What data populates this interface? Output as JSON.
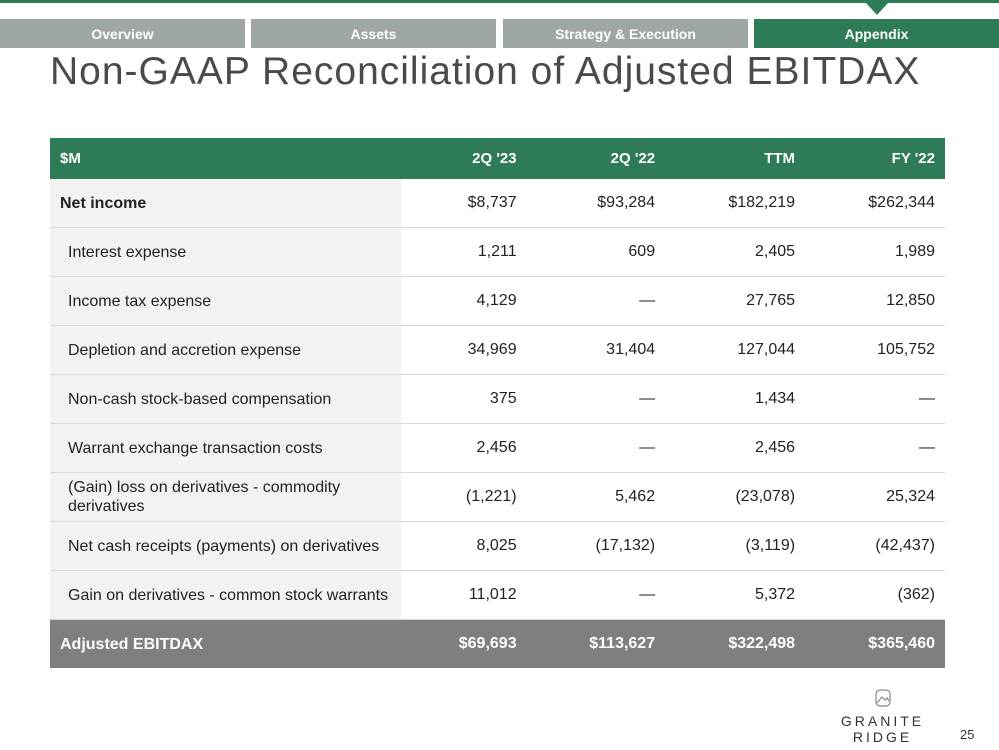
{
  "tabs": [
    "Overview",
    "Assets",
    "Strategy & Execution",
    "Appendix"
  ],
  "title": "Non-GAAP Reconciliation of Adjusted EBITDAX",
  "table": {
    "headers": [
      "$M",
      "2Q '23",
      "2Q '22",
      "TTM",
      "FY '22"
    ],
    "rows": [
      [
        "Net income",
        "$8,737",
        "$93,284",
        "$182,219",
        "$262,344"
      ],
      [
        "Interest expense",
        "1,211",
        "609",
        "2,405",
        "1,989"
      ],
      [
        "Income tax expense",
        "4,129",
        "—",
        "27,765",
        "12,850"
      ],
      [
        "Depletion and accretion expense",
        "34,969",
        "31,404",
        "127,044",
        "105,752"
      ],
      [
        "Non-cash stock-based compensation",
        "375",
        "—",
        "1,434",
        "—"
      ],
      [
        "Warrant exchange transaction costs",
        "2,456",
        "—",
        "2,456",
        "—"
      ],
      [
        "(Gain) loss on derivatives - commodity derivatives",
        "(1,221)",
        "5,462",
        "(23,078)",
        "25,324"
      ],
      [
        "Net cash receipts (payments) on derivatives",
        "8,025",
        "(17,132)",
        "(3,119)",
        "(42,437)"
      ],
      [
        "Gain on derivatives - common stock warrants",
        "11,012",
        "—",
        "5,372",
        "(362)"
      ]
    ],
    "total": [
      "Adjusted EBITDAX",
      "$69,693",
      "$113,627",
      "$322,498",
      "$365,460"
    ]
  },
  "logo": "GRANITE RIDGE",
  "page_number": "25"
}
